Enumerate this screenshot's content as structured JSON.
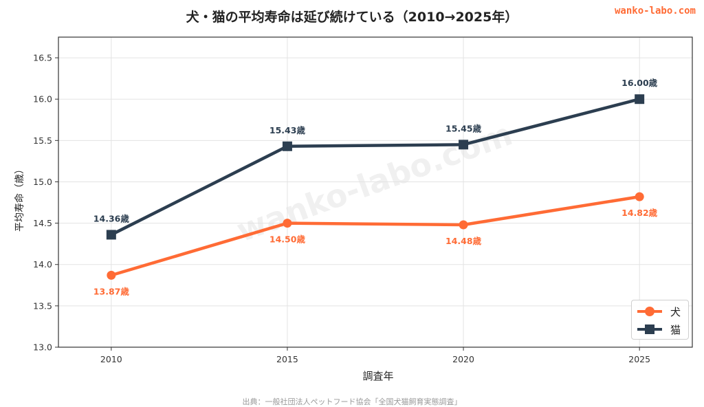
{
  "brand": "wanko-labo.com",
  "watermark": "wanko-labo.com",
  "source_note": "出典：一般社団法人ペットフード協会「全国犬猫飼育実態調査」",
  "chart_data": {
    "type": "line",
    "title": "犬・猫の平均寿命は延び続けている（2010→2025年）",
    "xlabel": "調査年",
    "ylabel": "平均寿命（歳）",
    "x": [
      2010,
      2015,
      2020,
      2025
    ],
    "ylim": [
      13.0,
      16.75
    ],
    "yticks": [
      "13.0",
      "13.5",
      "14.0",
      "14.5",
      "15.0",
      "15.5",
      "16.0",
      "16.5"
    ],
    "xticks": [
      "2010",
      "2015",
      "2020",
      "2025"
    ],
    "grid": true,
    "legend_position": "bottom-right",
    "series": [
      {
        "name": "犬",
        "values": [
          13.87,
          14.5,
          14.48,
          14.82
        ],
        "labels": [
          "13.87歳",
          "14.50歳",
          "14.48歳",
          "14.82歳"
        ],
        "color": "#ff6b35",
        "marker": "circle",
        "label_position": "below"
      },
      {
        "name": "猫",
        "values": [
          14.36,
          15.43,
          15.45,
          16.0
        ],
        "labels": [
          "14.36歳",
          "15.43歳",
          "15.45歳",
          "16.00歳"
        ],
        "color": "#2c3e50",
        "marker": "square",
        "label_position": "above"
      }
    ]
  }
}
